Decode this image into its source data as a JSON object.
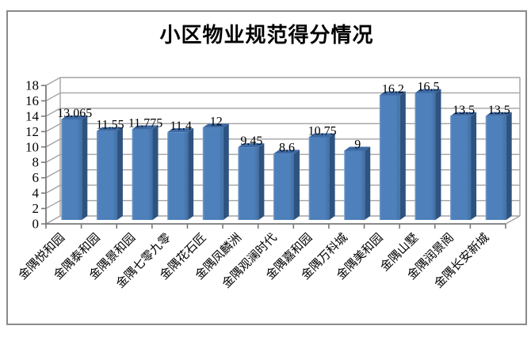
{
  "chart_data": {
    "type": "bar",
    "style": "3d-clustered-column",
    "title": "小区物业规范得分情况",
    "xlabel": "",
    "ylabel": "",
    "legend": "none",
    "grid": true,
    "ylim": [
      0,
      18
    ],
    "y_ticks": [
      0,
      2,
      4,
      6,
      8,
      10,
      12,
      14,
      16,
      18
    ],
    "categories": [
      "金隅悦和园",
      "金隅泰和园",
      "金隅景和园",
      "金隅七零九零",
      "金隅花石匠",
      "金隅凤麟洲",
      "金隅观澜时代",
      "金隅嘉和园",
      "金隅万科城",
      "金隅美和园",
      "金隅山墅",
      "金隅润景阁",
      "金隅长安新城"
    ],
    "values": [
      13.065,
      11.55,
      11.775,
      11.4,
      12,
      9.45,
      8.6,
      10.75,
      9,
      16.2,
      16.5,
      13.5,
      13.5
    ],
    "data_labels": [
      "13.065",
      "11.55",
      "11.775",
      "11.4",
      "12",
      "9.45",
      "8.6",
      "10.75",
      "9",
      "16.2",
      "16.5",
      "13.5",
      "13.5"
    ],
    "colors": {
      "bar_front": "#4E80BB",
      "bar_front_dark": "#3F6FA3",
      "bar_highlight": "#7BA0CD",
      "bar_side": "#2E5380",
      "bar_top": "#3D69A4",
      "gridline": "#A3A3A3",
      "axis": "#7A7A7A",
      "text": "#000000",
      "frame_border": "#8A8A8A",
      "background": "#FFFFFF"
    }
  }
}
